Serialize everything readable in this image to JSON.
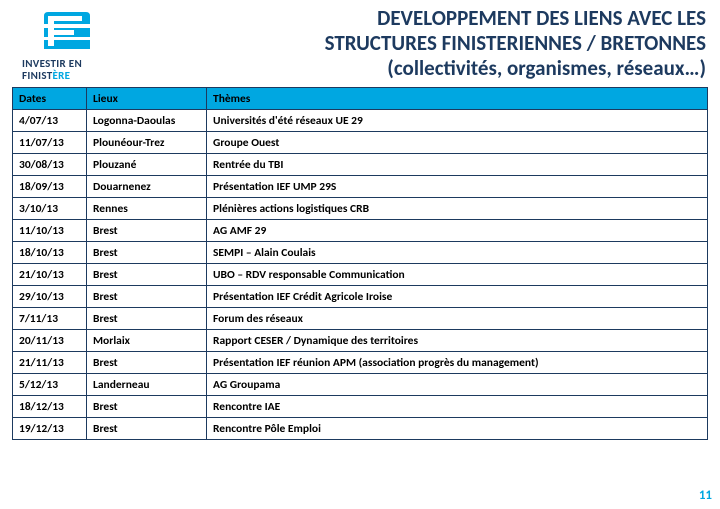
{
  "colors": {
    "accent_blue": "#00a7e1",
    "dark_navy": "#1d3a5f",
    "border": "#1d3a5f",
    "bg": "#ffffff"
  },
  "logo": {
    "line1": "INVESTIR EN",
    "line2_a": "FINIST",
    "line2_b": "ÈRE"
  },
  "title": {
    "l1": "DEVELOPPEMENT DES LIENS AVEC LES",
    "l2": "STRUCTURES FINISTERIENNES / BRETONNES",
    "l3": "(collectivités, organismes, réseaux…)"
  },
  "table": {
    "columns": [
      "Dates",
      "Lieux",
      "Thèmes"
    ],
    "rows": [
      [
        "4/07/13",
        "Logonna-Daoulas",
        "Universités d'été réseaux UE 29"
      ],
      [
        "11/07/13",
        "Plounéour-Trez",
        "Groupe Ouest"
      ],
      [
        "30/08/13",
        "Plouzané",
        "Rentrée du TBI"
      ],
      [
        "18/09/13",
        "Douarnenez",
        "Présentation IEF UMP 29S"
      ],
      [
        "3/10/13",
        "Rennes",
        "Plénières actions logistiques CRB"
      ],
      [
        "11/10/13",
        "Brest",
        "AG AMF 29"
      ],
      [
        "18/10/13",
        "Brest",
        "SEMPI – Alain Coulais"
      ],
      [
        "21/10/13",
        "Brest",
        "UBO – RDV responsable Communication"
      ],
      [
        "29/10/13",
        "Brest",
        "Présentation IEF Crédit Agricole Iroise"
      ],
      [
        "7/11/13",
        "Brest",
        "Forum des réseaux"
      ],
      [
        "20/11/13",
        "Morlaix",
        "Rapport CESER / Dynamique des territoires"
      ],
      [
        "21/11/13",
        "Brest",
        "Présentation IEF réunion APM (association progrès du management)"
      ],
      [
        "5/12/13",
        "Landerneau",
        "AG Groupama"
      ],
      [
        "18/12/13",
        "Brest",
        "Rencontre IAE"
      ],
      [
        "19/12/13",
        "Brest",
        "Rencontre Pôle Emploi"
      ]
    ]
  },
  "page_number": "11"
}
